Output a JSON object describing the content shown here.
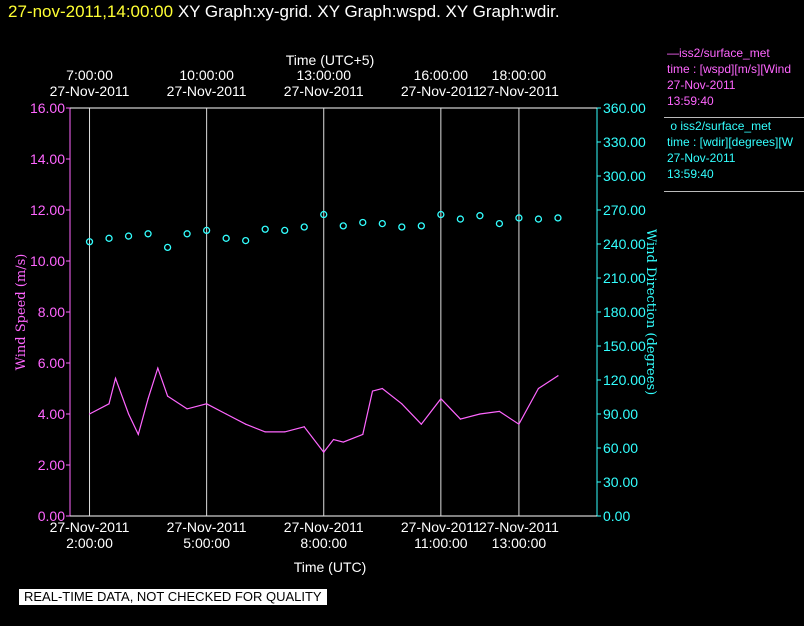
{
  "header": {
    "timestamp": "27-nov-2011,14:00:00",
    "graphs": "  XY Graph:xy-grid.  XY Graph:wspd.  XY Graph:wdir."
  },
  "legend": [
    {
      "source": "iss2/surface_met",
      "var": "time : [wspd][m/s][Wind",
      "date": "27-Nov-2011",
      "time": "13:59:40",
      "symbol": "line",
      "color": "#ff66ff"
    },
    {
      "source": "iss2/surface_met",
      "var": "time : [wdir][degrees][W",
      "date": "27-Nov-2011",
      "time": "13:59:40",
      "symbol": "circle",
      "color": "#33ffff"
    }
  ],
  "footer": "REAL-TIME DATA, NOT CHECKED FOR QUALITY",
  "chart_data": {
    "type": "line",
    "title": "",
    "xlabel_bottom": "Time (UTC)",
    "xlabel_top": "Time (UTC+5)",
    "ylabel_left": "Wind Speed (m/s)",
    "ylabel_right": "Wind Direction (degrees)",
    "xlim_utc": [
      "01:30",
      "15:00"
    ],
    "bottom_ticks": [
      {
        "time": "02:00",
        "line1": "27-Nov-2011",
        "line2": "2:00:00"
      },
      {
        "time": "05:00",
        "line1": "27-Nov-2011",
        "line2": "5:00:00"
      },
      {
        "time": "08:00",
        "line1": "27-Nov-2011",
        "line2": "8:00:00"
      },
      {
        "time": "11:00",
        "line1": "27-Nov-2011",
        "line2": "11:00:00"
      },
      {
        "time": "13:00",
        "line1": "27-Nov-2011",
        "line2": "13:00:00"
      }
    ],
    "top_ticks": [
      {
        "time": "02:00",
        "line1": "7:00:00",
        "line2": "27-Nov-2011"
      },
      {
        "time": "05:00",
        "line1": "10:00:00",
        "line2": "27-Nov-2011"
      },
      {
        "time": "08:00",
        "line1": "13:00:00",
        "line2": "27-Nov-2011"
      },
      {
        "time": "11:00",
        "line1": "16:00:00",
        "line2": "27-Nov-2011"
      },
      {
        "time": "13:00",
        "line1": "18:00:00",
        "line2": "27-Nov-2011"
      }
    ],
    "y_left": {
      "ylim": [
        0,
        16
      ],
      "ticks": [
        "0.00",
        "2.00",
        "4.00",
        "6.00",
        "8.00",
        "10.00",
        "12.00",
        "14.00",
        "16.00"
      ]
    },
    "y_right": {
      "ylim": [
        0,
        360
      ],
      "ticks": [
        "0.00",
        "30.00",
        "60.00",
        "90.00",
        "120.00",
        "150.00",
        "180.00",
        "210.00",
        "240.00",
        "270.00",
        "300.00",
        "330.00",
        "360.00"
      ]
    },
    "grid": "vertical at bottom ticks",
    "series": [
      {
        "name": "iss2/surface_met time : [wspd][m/s][Wind",
        "axis": "left",
        "marker": "line",
        "color": "#ff66ff",
        "x": [
          "02:00",
          "02:30",
          "02:40",
          "03:00",
          "03:15",
          "03:30",
          "03:45",
          "04:00",
          "04:30",
          "05:00",
          "05:30",
          "06:00",
          "06:30",
          "07:00",
          "07:30",
          "08:00",
          "08:15",
          "08:30",
          "09:00",
          "09:15",
          "09:30",
          "10:00",
          "10:30",
          "11:00",
          "11:30",
          "12:00",
          "12:30",
          "13:00",
          "13:30",
          "14:00"
        ],
        "y": [
          4.0,
          4.4,
          5.4,
          4.0,
          3.2,
          4.6,
          5.8,
          4.7,
          4.2,
          4.4,
          4.0,
          3.6,
          3.3,
          3.3,
          3.5,
          2.5,
          3.0,
          2.9,
          3.2,
          4.9,
          5.0,
          4.4,
          3.6,
          4.6,
          3.8,
          4.0,
          4.1,
          3.6,
          5.0,
          5.5
        ]
      },
      {
        "name": "iss2/surface_met time : [wdir][degrees][W",
        "axis": "right",
        "marker": "circle",
        "color": "#33ffff",
        "x": [
          "02:00",
          "02:30",
          "03:00",
          "03:30",
          "04:00",
          "04:30",
          "05:00",
          "05:30",
          "06:00",
          "06:30",
          "07:00",
          "07:30",
          "08:00",
          "08:30",
          "09:00",
          "09:30",
          "10:00",
          "10:30",
          "11:00",
          "11:30",
          "12:00",
          "12:30",
          "13:00",
          "13:30",
          "14:00"
        ],
        "y": [
          242,
          245,
          247,
          249,
          237,
          249,
          252,
          245,
          243,
          253,
          252,
          255,
          266,
          256,
          259,
          258,
          255,
          256,
          266,
          262,
          265,
          258,
          263,
          262,
          263
        ]
      }
    ]
  }
}
